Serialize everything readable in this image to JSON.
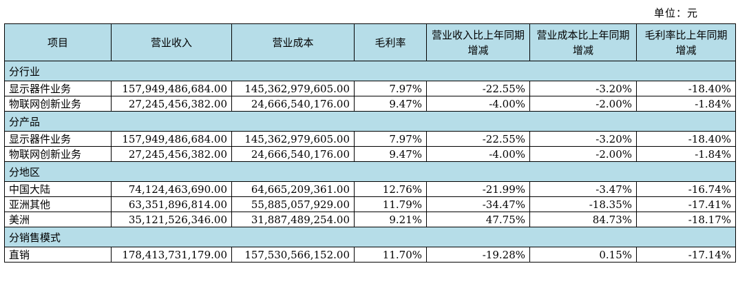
{
  "unit": "单位：元",
  "headers": [
    "项目",
    "营业收入",
    "营业成本",
    "毛利率",
    "营业收入比上年同期增减",
    "营业成本比上年同期增减",
    "毛利率比上年同期增减"
  ],
  "sections": [
    {
      "title": "分行业",
      "rows": [
        [
          "显示器件业务",
          "157,949,486,684.00",
          "145,362,979,605.00",
          "7.97%",
          "-22.55%",
          "-3.20%",
          "-18.40%"
        ],
        [
          "物联网创新业务",
          "27,245,456,382.00",
          "24,666,540,176.00",
          "9.47%",
          "-4.00%",
          "-2.00%",
          "-1.84%"
        ]
      ]
    },
    {
      "title": "分产品",
      "rows": [
        [
          "显示器件业务",
          "157,949,486,684.00",
          "145,362,979,605.00",
          "7.97%",
          "-22.55%",
          "-3.20%",
          "-18.40%"
        ],
        [
          "物联网创新业务",
          "27,245,456,382.00",
          "24,666,540,176.00",
          "9.47%",
          "-4.00%",
          "-2.00%",
          "-1.84%"
        ]
      ]
    },
    {
      "title": "分地区",
      "rows": [
        [
          "中国大陆",
          "74,124,463,690.00",
          "64,665,209,361.00",
          "12.76%",
          "-21.99%",
          "-3.47%",
          "-16.74%"
        ],
        [
          "亚洲其他",
          "63,351,896,814.00",
          "55,885,057,929.00",
          "11.79%",
          "-34.47%",
          "-18.35%",
          "-17.41%"
        ],
        [
          "美洲",
          "35,121,526,346.00",
          "31,887,489,254.00",
          "9.21%",
          "47.75%",
          "84.73%",
          "-18.17%"
        ]
      ]
    },
    {
      "title": "分销售模式",
      "rows": [
        [
          "直销",
          "178,413,731,179.00",
          "157,530,566,152.00",
          "11.70%",
          "-19.28%",
          "0.15%",
          "-17.14%"
        ]
      ]
    }
  ]
}
